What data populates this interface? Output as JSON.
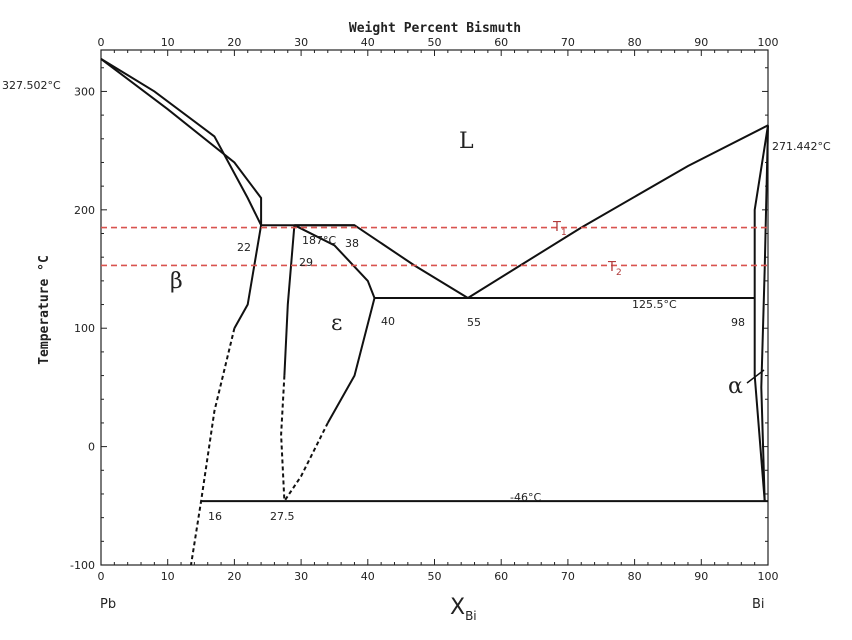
{
  "chart_data": {
    "type": "line",
    "title": "Weight Percent Bismuth",
    "xlabel": "X",
    "xlabel_sub": "Bi",
    "ylabel": "Temperature °C",
    "xlim": [
      0,
      100
    ],
    "ylim": [
      -100,
      330
    ],
    "x_ticks": [
      0,
      10,
      20,
      30,
      40,
      50,
      60,
      70,
      80,
      90,
      100
    ],
    "y_ticks": [
      -100,
      0,
      100,
      200,
      300
    ],
    "top_ticks": [
      0,
      10,
      20,
      30,
      40,
      50,
      60,
      70,
      80,
      90,
      100
    ],
    "left_element": "Pb",
    "right_element": "Bi",
    "annotations": {
      "pb_melt": "327.502°C",
      "bi_melt": "271.442°C",
      "peritectic_temp": "187°C",
      "eutectic_temp": "125.5°C",
      "low_temp": "-46°C"
    },
    "points": {
      "p22": "22",
      "p29": "29",
      "p38": "38",
      "p40": "40",
      "p55": "55",
      "p98": "98",
      "p16": "16",
      "p27_5": "27.5"
    },
    "phases": {
      "liquid": "L",
      "beta": "β",
      "epsilon": "ε",
      "alpha": "α"
    },
    "isotherms": [
      {
        "name": "T",
        "sub": "1",
        "y": 185
      },
      {
        "name": "T",
        "sub": "2",
        "y": 153
      }
    ],
    "series": [
      {
        "values": [
          [
            0,
            327.5
          ],
          [
            10,
            285
          ],
          [
            20,
            240
          ],
          [
            24,
            210
          ],
          [
            24,
            187
          ]
        ]
      },
      {
        "values": [
          [
            0,
            327.5
          ],
          [
            8,
            300
          ],
          [
            17,
            262
          ],
          [
            22,
            210
          ],
          [
            24,
            187
          ]
        ]
      },
      {
        "values": [
          [
            24,
            187
          ],
          [
            38,
            187
          ]
        ]
      },
      {
        "values": [
          [
            29,
            187
          ],
          [
            38,
            187
          ],
          [
            47,
            153
          ],
          [
            55,
            125.5
          ]
        ]
      },
      {
        "values": [
          [
            29,
            187
          ],
          [
            35,
            170
          ],
          [
            40,
            140
          ],
          [
            41,
            125.5
          ]
        ]
      },
      {
        "values": [
          [
            55,
            125.5
          ],
          [
            72,
            185
          ],
          [
            88,
            237
          ],
          [
            100,
            271.4
          ]
        ]
      },
      {
        "values": [
          [
            41,
            125.5
          ],
          [
            98,
            125.5
          ]
        ]
      },
      {
        "values": [
          [
            24,
            187
          ],
          [
            22,
            120
          ],
          [
            20,
            100
          ]
        ]
      },
      {
        "values": [
          [
            29,
            187
          ],
          [
            28,
            120
          ],
          [
            27.5,
            60
          ]
        ]
      },
      {
        "values": [
          [
            41,
            125.5
          ],
          [
            38,
            60
          ],
          [
            34,
            20
          ]
        ]
      },
      {
        "values": [
          [
            15,
            -46
          ],
          [
            100,
            -46
          ]
        ]
      },
      {
        "values": [
          [
            100,
            271.4
          ],
          [
            98,
            200
          ],
          [
            98,
            125.5
          ],
          [
            98,
            60
          ],
          [
            99.5,
            -46
          ]
        ]
      },
      {
        "values": [
          [
            100,
            271.4
          ],
          [
            99.5,
            150
          ],
          [
            99,
            50
          ],
          [
            99.5,
            -46
          ]
        ]
      }
    ],
    "dashed_series": [
      {
        "values": [
          [
            20,
            100
          ],
          [
            17,
            30
          ],
          [
            15,
            -46
          ],
          [
            13.5,
            -100
          ]
        ]
      },
      {
        "values": [
          [
            27.5,
            60
          ],
          [
            27,
            10
          ],
          [
            27.5,
            -46
          ]
        ]
      },
      {
        "values": [
          [
            34,
            20
          ],
          [
            30,
            -25
          ],
          [
            27.5,
            -46
          ]
        ]
      }
    ]
  }
}
